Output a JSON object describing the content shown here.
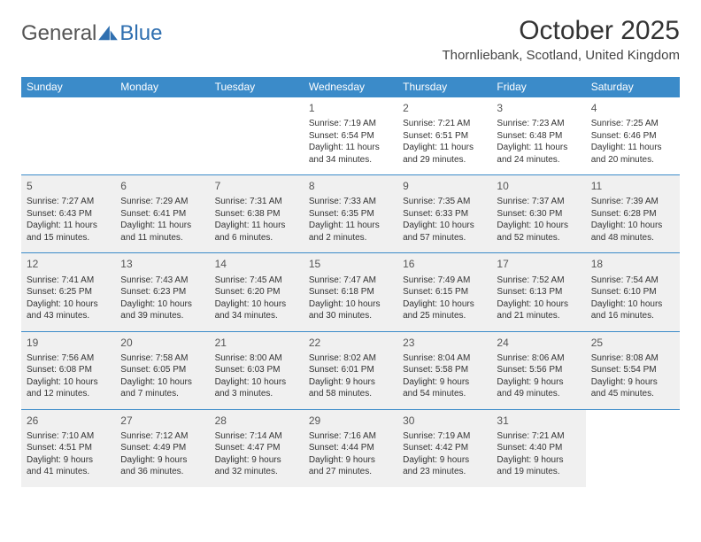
{
  "logo": {
    "text1": "General",
    "text2": "Blue",
    "accent": "#2f6fb0"
  },
  "title": "October 2025",
  "location": "Thornliebank, Scotland, United Kingdom",
  "colors": {
    "header_bg": "#3b8bc9",
    "header_text": "#ffffff",
    "row_alt_bg": "#f0f0f0",
    "border": "#3b8bc9",
    "text": "#333333"
  },
  "dayHeaders": [
    "Sunday",
    "Monday",
    "Tuesday",
    "Wednesday",
    "Thursday",
    "Friday",
    "Saturday"
  ],
  "weeks": [
    {
      "alt": false,
      "days": [
        null,
        null,
        null,
        {
          "n": "1",
          "sr": "7:19 AM",
          "ss": "6:54 PM",
          "dl": "11 hours and 34 minutes."
        },
        {
          "n": "2",
          "sr": "7:21 AM",
          "ss": "6:51 PM",
          "dl": "11 hours and 29 minutes."
        },
        {
          "n": "3",
          "sr": "7:23 AM",
          "ss": "6:48 PM",
          "dl": "11 hours and 24 minutes."
        },
        {
          "n": "4",
          "sr": "7:25 AM",
          "ss": "6:46 PM",
          "dl": "11 hours and 20 minutes."
        }
      ]
    },
    {
      "alt": true,
      "days": [
        {
          "n": "5",
          "sr": "7:27 AM",
          "ss": "6:43 PM",
          "dl": "11 hours and 15 minutes."
        },
        {
          "n": "6",
          "sr": "7:29 AM",
          "ss": "6:41 PM",
          "dl": "11 hours and 11 minutes."
        },
        {
          "n": "7",
          "sr": "7:31 AM",
          "ss": "6:38 PM",
          "dl": "11 hours and 6 minutes."
        },
        {
          "n": "8",
          "sr": "7:33 AM",
          "ss": "6:35 PM",
          "dl": "11 hours and 2 minutes."
        },
        {
          "n": "9",
          "sr": "7:35 AM",
          "ss": "6:33 PM",
          "dl": "10 hours and 57 minutes."
        },
        {
          "n": "10",
          "sr": "7:37 AM",
          "ss": "6:30 PM",
          "dl": "10 hours and 52 minutes."
        },
        {
          "n": "11",
          "sr": "7:39 AM",
          "ss": "6:28 PM",
          "dl": "10 hours and 48 minutes."
        }
      ]
    },
    {
      "alt": true,
      "days": [
        {
          "n": "12",
          "sr": "7:41 AM",
          "ss": "6:25 PM",
          "dl": "10 hours and 43 minutes."
        },
        {
          "n": "13",
          "sr": "7:43 AM",
          "ss": "6:23 PM",
          "dl": "10 hours and 39 minutes."
        },
        {
          "n": "14",
          "sr": "7:45 AM",
          "ss": "6:20 PM",
          "dl": "10 hours and 34 minutes."
        },
        {
          "n": "15",
          "sr": "7:47 AM",
          "ss": "6:18 PM",
          "dl": "10 hours and 30 minutes."
        },
        {
          "n": "16",
          "sr": "7:49 AM",
          "ss": "6:15 PM",
          "dl": "10 hours and 25 minutes."
        },
        {
          "n": "17",
          "sr": "7:52 AM",
          "ss": "6:13 PM",
          "dl": "10 hours and 21 minutes."
        },
        {
          "n": "18",
          "sr": "7:54 AM",
          "ss": "6:10 PM",
          "dl": "10 hours and 16 minutes."
        }
      ]
    },
    {
      "alt": true,
      "days": [
        {
          "n": "19",
          "sr": "7:56 AM",
          "ss": "6:08 PM",
          "dl": "10 hours and 12 minutes."
        },
        {
          "n": "20",
          "sr": "7:58 AM",
          "ss": "6:05 PM",
          "dl": "10 hours and 7 minutes."
        },
        {
          "n": "21",
          "sr": "8:00 AM",
          "ss": "6:03 PM",
          "dl": "10 hours and 3 minutes."
        },
        {
          "n": "22",
          "sr": "8:02 AM",
          "ss": "6:01 PM",
          "dl": "9 hours and 58 minutes."
        },
        {
          "n": "23",
          "sr": "8:04 AM",
          "ss": "5:58 PM",
          "dl": "9 hours and 54 minutes."
        },
        {
          "n": "24",
          "sr": "8:06 AM",
          "ss": "5:56 PM",
          "dl": "9 hours and 49 minutes."
        },
        {
          "n": "25",
          "sr": "8:08 AM",
          "ss": "5:54 PM",
          "dl": "9 hours and 45 minutes."
        }
      ]
    },
    {
      "alt": true,
      "days": [
        {
          "n": "26",
          "sr": "7:10 AM",
          "ss": "4:51 PM",
          "dl": "9 hours and 41 minutes."
        },
        {
          "n": "27",
          "sr": "7:12 AM",
          "ss": "4:49 PM",
          "dl": "9 hours and 36 minutes."
        },
        {
          "n": "28",
          "sr": "7:14 AM",
          "ss": "4:47 PM",
          "dl": "9 hours and 32 minutes."
        },
        {
          "n": "29",
          "sr": "7:16 AM",
          "ss": "4:44 PM",
          "dl": "9 hours and 27 minutes."
        },
        {
          "n": "30",
          "sr": "7:19 AM",
          "ss": "4:42 PM",
          "dl": "9 hours and 23 minutes."
        },
        {
          "n": "31",
          "sr": "7:21 AM",
          "ss": "4:40 PM",
          "dl": "9 hours and 19 minutes."
        },
        null
      ]
    }
  ],
  "labels": {
    "sunrise": "Sunrise:",
    "sunset": "Sunset:",
    "daylight": "Daylight:"
  }
}
